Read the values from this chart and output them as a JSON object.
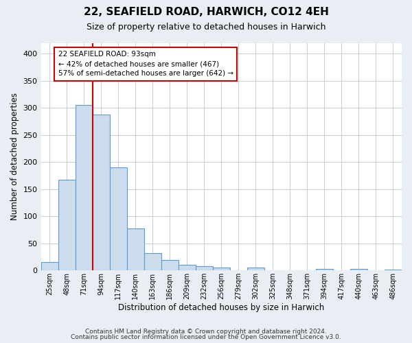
{
  "title": "22, SEAFIELD ROAD, HARWICH, CO12 4EH",
  "subtitle": "Size of property relative to detached houses in Harwich",
  "xlabel": "Distribution of detached houses by size in Harwich",
  "ylabel": "Number of detached properties",
  "bin_labels": [
    "25sqm",
    "48sqm",
    "71sqm",
    "94sqm",
    "117sqm",
    "140sqm",
    "163sqm",
    "186sqm",
    "209sqm",
    "232sqm",
    "256sqm",
    "279sqm",
    "302sqm",
    "325sqm",
    "348sqm",
    "371sqm",
    "394sqm",
    "417sqm",
    "440sqm",
    "463sqm",
    "486sqm"
  ],
  "bar_values": [
    15,
    168,
    305,
    288,
    190,
    78,
    32,
    19,
    10,
    8,
    5,
    0,
    5,
    0,
    0,
    0,
    3,
    0,
    3,
    0,
    2
  ],
  "bar_color": "#ccdcec",
  "bar_edge_color": "#5b9bd5",
  "vline_color": "#cc0000",
  "annotation_title": "22 SEAFIELD ROAD: 93sqm",
  "annotation_line1": "← 42% of detached houses are smaller (467)",
  "annotation_line2": "57% of semi-detached houses are larger (642) →",
  "annotation_box_color": "#ffffff",
  "annotation_box_edge_color": "#cc0000",
  "ylim": [
    0,
    420
  ],
  "yticks": [
    0,
    50,
    100,
    150,
    200,
    250,
    300,
    350,
    400
  ],
  "footer_line1": "Contains HM Land Registry data © Crown copyright and database right 2024.",
  "footer_line2": "Contains public sector information licensed under the Open Government Licence v3.0.",
  "background_color": "#e8eef4",
  "plot_background_color": "#ffffff",
  "grid_color": "#c5cfd8"
}
